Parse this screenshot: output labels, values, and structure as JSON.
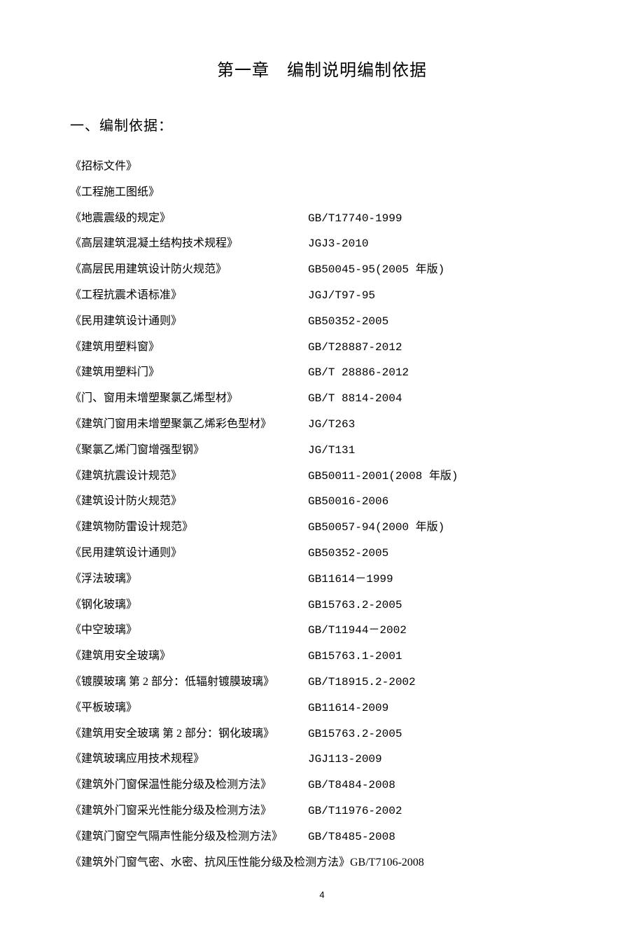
{
  "chapter_title": "第一章　编制说明编制依据",
  "section_heading": "一、编制依据：",
  "references": [
    {
      "name": "《招标文件》",
      "code": ""
    },
    {
      "name": "《工程施工图纸》",
      "code": ""
    },
    {
      "name": "《地震震级的规定》",
      "code": "GB/T17740-1999"
    },
    {
      "name": "《高层建筑混凝土结构技术规程》",
      "code": "JGJ3-2010"
    },
    {
      "name": "《高层民用建筑设计防火规范》",
      "code": "GB50045-95(2005 年版)"
    },
    {
      "name": "《工程抗震术语标准》",
      "code": "JGJ/T97-95"
    },
    {
      "name": "《民用建筑设计通则》",
      "code": "GB50352-2005"
    },
    {
      "name": "《建筑用塑料窗》",
      "code": "GB/T28887-2012"
    },
    {
      "name": "《建筑用塑料门》",
      "code": "GB/T 28886-2012"
    },
    {
      "name": "《门、窗用未增塑聚氯乙烯型材》",
      "code": "GB/T 8814-2004"
    },
    {
      "name": "《建筑门窗用未增塑聚氯乙烯彩色型材》",
      "code": "JG/T263"
    },
    {
      "name": "《聚氯乙烯门窗增强型钢》",
      "code": "JG/T131"
    },
    {
      "name": "《建筑抗震设计规范》",
      "code": "GB50011-2001(2008 年版)"
    },
    {
      "name": "《建筑设计防火规范》",
      "code": "GB50016-2006"
    },
    {
      "name": "《建筑物防雷设计规范》",
      "code": "GB50057-94(2000 年版)"
    },
    {
      "name": "《民用建筑设计通则》",
      "code": "GB50352-2005"
    },
    {
      "name": "《浮法玻璃》",
      "code": "GB11614－1999"
    },
    {
      "name": "《钢化玻璃》",
      "code": "GB15763.2-2005"
    },
    {
      "name": "《中空玻璃》",
      "code": "GB/T11944－2002"
    },
    {
      "name": "《建筑用安全玻璃》",
      "code": "GB15763.1-2001"
    },
    {
      "name": "《镀膜玻璃 第 2 部分：低辐射镀膜玻璃》",
      "code": "GB/T18915.2-2002"
    },
    {
      "name": "《平板玻璃》",
      "code": "GB11614-2009"
    },
    {
      "name": "《建筑用安全玻璃 第 2 部分：钢化玻璃》",
      "code": "GB15763.2-2005"
    },
    {
      "name": "《建筑玻璃应用技术规程》",
      "code": "JGJ113-2009"
    },
    {
      "name": "《建筑外门窗保温性能分级及检测方法》",
      "code": "GB/T8484-2008"
    },
    {
      "name": "《建筑外门窗采光性能分级及检测方法》",
      "code": "GB/T11976-2002"
    },
    {
      "name": "《建筑门窗空气隔声性能分级及检测方法》",
      "code": "GB/T8485-2008"
    }
  ],
  "last_line_full": "《建筑外门窗气密、水密、抗风压性能分级及检测方法》GB/T7106-2008",
  "page_number": "4"
}
